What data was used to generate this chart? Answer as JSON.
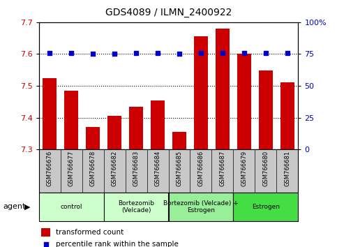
{
  "title": "GDS4089 / ILMN_2400922",
  "samples": [
    "GSM766676",
    "GSM766677",
    "GSM766678",
    "GSM766682",
    "GSM766683",
    "GSM766684",
    "GSM766685",
    "GSM766686",
    "GSM766687",
    "GSM766679",
    "GSM766680",
    "GSM766681"
  ],
  "transformed_count": [
    7.525,
    7.485,
    7.37,
    7.405,
    7.435,
    7.455,
    7.355,
    7.655,
    7.68,
    7.6,
    7.548,
    7.51
  ],
  "percentile_rank": [
    76,
    76,
    75,
    75,
    76,
    76,
    75,
    76,
    76,
    76,
    76,
    76
  ],
  "ylim_left": [
    7.3,
    7.7
  ],
  "ylim_right": [
    0,
    100
  ],
  "yticks_left": [
    7.3,
    7.4,
    7.5,
    7.6,
    7.7
  ],
  "yticks_right": [
    0,
    25,
    50,
    75,
    100
  ],
  "bar_color": "#cc0000",
  "dot_color": "#0000cc",
  "groups": [
    {
      "label": "control",
      "start": 0,
      "end": 3,
      "color": "#ccffcc"
    },
    {
      "label": "Bortezomib\n(Velcade)",
      "start": 3,
      "end": 6,
      "color": "#ccffcc"
    },
    {
      "label": "Bortezomib (Velcade) +\nEstrogen",
      "start": 6,
      "end": 9,
      "color": "#99ee99"
    },
    {
      "label": "Estrogen",
      "start": 9,
      "end": 12,
      "color": "#44dd44"
    }
  ],
  "agent_label": "agent",
  "legend_bar_label": "transformed count",
  "legend_dot_label": "percentile rank within the sample",
  "background_color": "#ffffff",
  "tick_area_color": "#c8c8c8"
}
